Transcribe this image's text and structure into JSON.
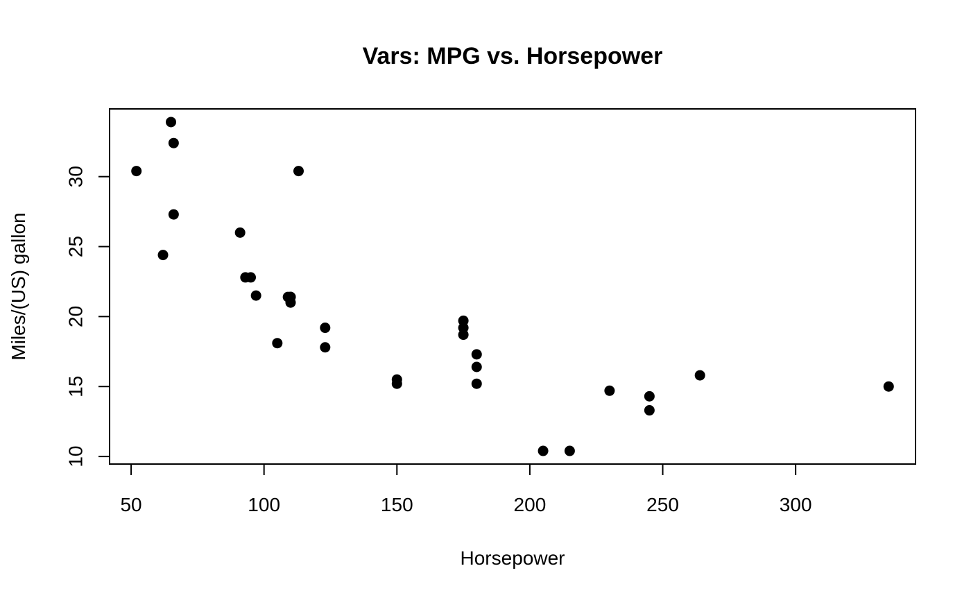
{
  "chart_data": {
    "type": "scatter",
    "title": "Vars: MPG vs. Horsepower",
    "xlabel": "Horsepower",
    "ylabel": "Miles/(US) gallon",
    "xlim": [
      41.9,
      345.1
    ],
    "ylim": [
      9.46,
      34.84
    ],
    "xticks": [
      50,
      100,
      150,
      200,
      250,
      300
    ],
    "yticks": [
      10,
      15,
      20,
      25,
      30
    ],
    "grid": false,
    "point_color": "#000000",
    "points": [
      {
        "x": 110,
        "y": 21.0
      },
      {
        "x": 110,
        "y": 21.4
      },
      {
        "x": 93,
        "y": 22.8
      },
      {
        "x": 110,
        "y": 21.4
      },
      {
        "x": 175,
        "y": 18.7
      },
      {
        "x": 105,
        "y": 18.1
      },
      {
        "x": 245,
        "y": 14.3
      },
      {
        "x": 62,
        "y": 24.4
      },
      {
        "x": 95,
        "y": 22.8
      },
      {
        "x": 123,
        "y": 19.2
      },
      {
        "x": 123,
        "y": 17.8
      },
      {
        "x": 180,
        "y": 16.4
      },
      {
        "x": 180,
        "y": 17.3
      },
      {
        "x": 180,
        "y": 15.2
      },
      {
        "x": 205,
        "y": 10.4
      },
      {
        "x": 215,
        "y": 10.4
      },
      {
        "x": 230,
        "y": 14.7
      },
      {
        "x": 66,
        "y": 32.4
      },
      {
        "x": 52,
        "y": 30.4
      },
      {
        "x": 65,
        "y": 33.9
      },
      {
        "x": 97,
        "y": 21.5
      },
      {
        "x": 150,
        "y": 15.5
      },
      {
        "x": 150,
        "y": 15.2
      },
      {
        "x": 245,
        "y": 13.3
      },
      {
        "x": 175,
        "y": 19.2
      },
      {
        "x": 66,
        "y": 27.3
      },
      {
        "x": 91,
        "y": 26.0
      },
      {
        "x": 113,
        "y": 30.4
      },
      {
        "x": 264,
        "y": 15.8
      },
      {
        "x": 175,
        "y": 19.7
      },
      {
        "x": 335,
        "y": 15.0
      },
      {
        "x": 109,
        "y": 21.4
      }
    ]
  }
}
